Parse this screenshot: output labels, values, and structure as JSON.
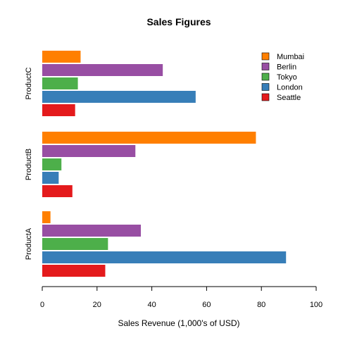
{
  "chart_data": {
    "type": "bar",
    "orientation": "horizontal",
    "title": "Sales Figures",
    "xlabel": "Sales Revenue (1,000's of USD)",
    "ylabel": "",
    "xlim": [
      0,
      100
    ],
    "xticks": [
      "0",
      "20",
      "40",
      "60",
      "80",
      "100"
    ],
    "grid": false,
    "legend_position": "top-right",
    "categories": [
      "ProductA",
      "ProductB",
      "ProductC"
    ],
    "series": [
      {
        "name": "Seattle",
        "color": "#e41a1c",
        "values": [
          23,
          11,
          12
        ]
      },
      {
        "name": "London",
        "color": "#377eb8",
        "values": [
          89,
          6,
          56
        ]
      },
      {
        "name": "Tokyo",
        "color": "#4daf4a",
        "values": [
          24,
          7,
          13
        ]
      },
      {
        "name": "Berlin",
        "color": "#984ea3",
        "values": [
          36,
          34,
          44
        ]
      },
      {
        "name": "Mumbai",
        "color": "#ff7f00",
        "values": [
          3,
          78,
          14
        ]
      }
    ],
    "legend_order": [
      "Mumbai",
      "Berlin",
      "Tokyo",
      "London",
      "Seattle"
    ]
  }
}
